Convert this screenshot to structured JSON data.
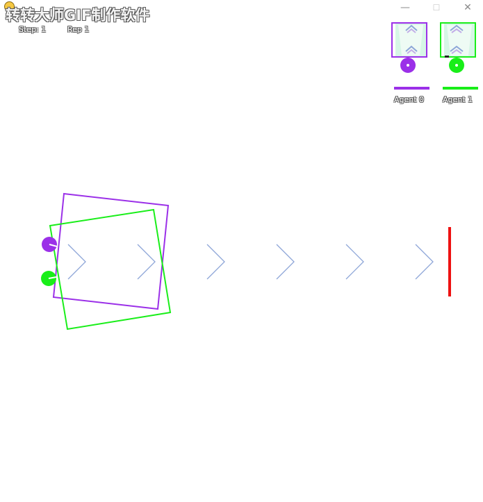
{
  "watermark": {
    "text": "转转大师GIF制作软件"
  },
  "status": {
    "step": "Step: 1",
    "rep": "Rep 1"
  },
  "window_controls": {
    "minimize": "—",
    "maximize": "☐",
    "close": "✕"
  },
  "agents": [
    {
      "label": "Agent 0",
      "color": "#9b30e8"
    },
    {
      "label": "Agent 1",
      "color": "#19ee19"
    }
  ],
  "scene": {
    "chevron_color": "#8ea6d8",
    "chevron_count": 6,
    "goal_color": "#ee1111"
  }
}
